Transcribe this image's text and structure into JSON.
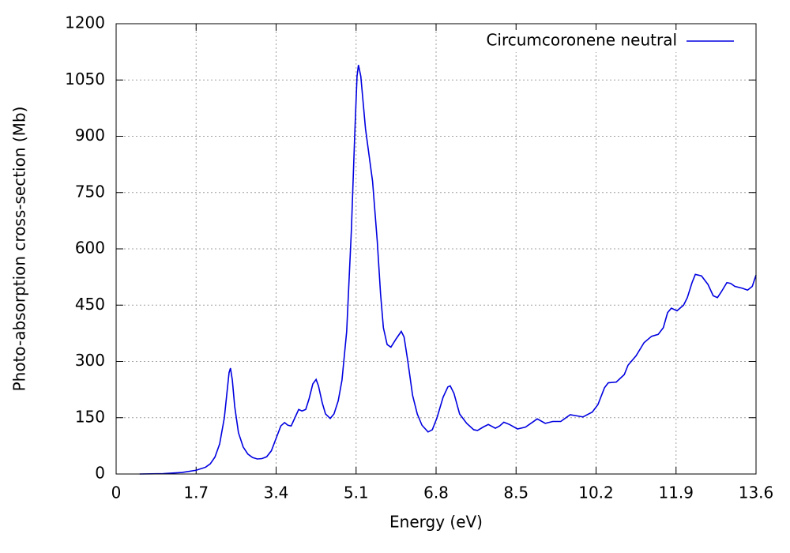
{
  "chart_data": {
    "type": "line",
    "xlabel": "Energy (eV)",
    "ylabel": "Photo-absorption cross-section (Mb)",
    "xlim": [
      0,
      13.6
    ],
    "xticks": [
      0,
      1.7,
      3.4,
      5.1,
      6.8,
      8.5,
      10.2,
      11.9,
      13.6
    ],
    "ylim": [
      0,
      1200
    ],
    "yticks": [
      0,
      150,
      300,
      450,
      600,
      750,
      900,
      1050,
      1200
    ],
    "grid": true,
    "legend": "upper right",
    "x": [
      0.5,
      1.0,
      1.4,
      1.7,
      1.9,
      2.0,
      2.1,
      2.2,
      2.3,
      2.35,
      2.4,
      2.43,
      2.47,
      2.52,
      2.6,
      2.7,
      2.8,
      2.9,
      3.0,
      3.1,
      3.2,
      3.3,
      3.4,
      3.5,
      3.58,
      3.65,
      3.72,
      3.8,
      3.88,
      3.95,
      4.03,
      4.1,
      4.18,
      4.25,
      4.3,
      4.38,
      4.45,
      4.55,
      4.63,
      4.72,
      4.8,
      4.9,
      5.0,
      5.07,
      5.12,
      5.15,
      5.2,
      5.3,
      5.45,
      5.55,
      5.62,
      5.68,
      5.76,
      5.84,
      5.95,
      6.06,
      6.12,
      6.2,
      6.3,
      6.4,
      6.5,
      6.63,
      6.72,
      6.82,
      6.95,
      7.05,
      7.1,
      7.18,
      7.3,
      7.45,
      7.6,
      7.68,
      7.8,
      7.91,
      8.06,
      8.15,
      8.24,
      8.36,
      8.53,
      8.7,
      8.85,
      8.95,
      9.12,
      9.28,
      9.45,
      9.65,
      9.79,
      9.92,
      10.12,
      10.24,
      10.38,
      10.46,
      10.63,
      10.8,
      10.88,
      11.05,
      11.22,
      11.38,
      11.52,
      11.63,
      11.72,
      11.8,
      11.92,
      12.06,
      12.14,
      12.24,
      12.31,
      12.44,
      12.58,
      12.69,
      12.78,
      12.86,
      12.98,
      13.06,
      13.15,
      13.31,
      13.42,
      13.52,
      13.6
    ],
    "series": [
      {
        "name": "Circumcoronene neutral",
        "color": "#0000e0",
        "values": [
          0,
          1,
          4,
          10,
          18,
          27,
          45,
          80,
          150,
          210,
          270,
          282,
          250,
          180,
          110,
          72,
          53,
          44,
          40,
          41,
          46,
          62,
          95,
          128,
          137,
          130,
          128,
          150,
          172,
          168,
          172,
          200,
          240,
          252,
          235,
          190,
          160,
          148,
          160,
          195,
          250,
          380,
          650,
          900,
          1060,
          1090,
          1060,
          920,
          780,
          620,
          480,
          390,
          345,
          338,
          360,
          380,
          365,
          300,
          210,
          160,
          130,
          112,
          118,
          150,
          205,
          232,
          235,
          215,
          160,
          135,
          118,
          116,
          125,
          132,
          122,
          128,
          138,
          132,
          120,
          125,
          138,
          147,
          135,
          140,
          140,
          158,
          155,
          152,
          165,
          185,
          230,
          243,
          245,
          265,
          290,
          315,
          350,
          367,
          372,
          390,
          430,
          442,
          435,
          450,
          470,
          510,
          532,
          528,
          505,
          475,
          470,
          485,
          510,
          508,
          500,
          495,
          490,
          500,
          530
        ]
      }
    ]
  }
}
